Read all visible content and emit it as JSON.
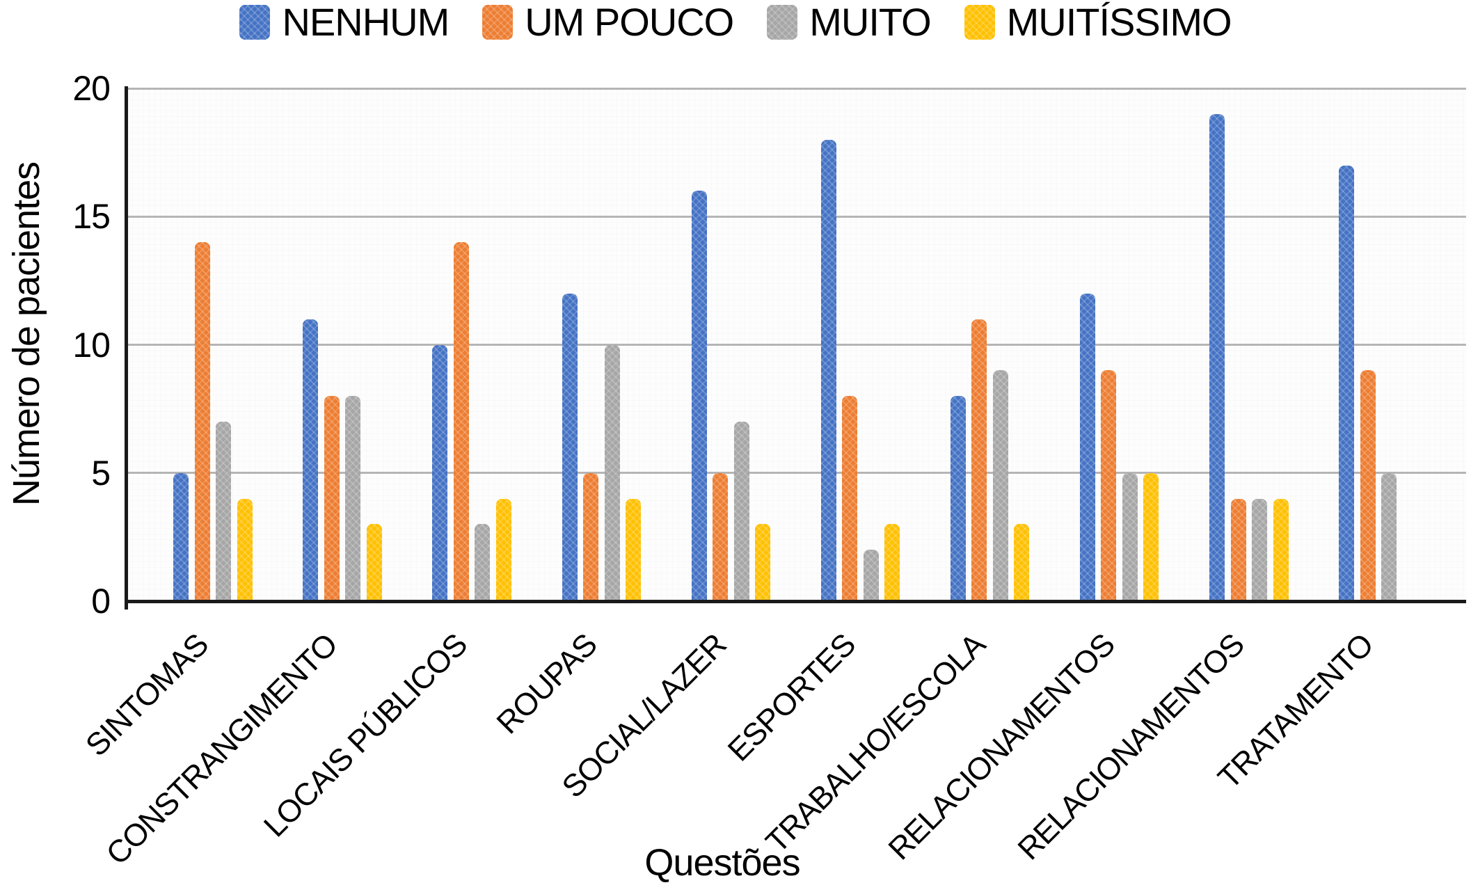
{
  "chart_data": {
    "type": "bar",
    "title": "",
    "xlabel": "Questões",
    "ylabel": "Número de pacientes",
    "ylim": [
      0,
      20
    ],
    "yticks": [
      0,
      5,
      10,
      15,
      20
    ],
    "grid": true,
    "legend_position": "top",
    "categories": [
      "SINTOMAS",
      "CONSTRANGIMENTO",
      "LOCAIS PÚBLICOS",
      "ROUPAS",
      "SOCIAL/LAZER",
      "ESPORTES",
      "TRABALHO/ESCOLA",
      "RELACIONAMENTOS",
      "RELACIONAMENTOS",
      "TRATAMENTO"
    ],
    "series": [
      {
        "name": "NENHUM",
        "color": "#4472C4",
        "values": [
          5,
          11,
          10,
          12,
          16,
          18,
          8,
          12,
          19,
          17
        ]
      },
      {
        "name": "UM POUCO",
        "color": "#ED7D31",
        "values": [
          14,
          8,
          14,
          5,
          5,
          8,
          11,
          9,
          4,
          9
        ]
      },
      {
        "name": "MUITO",
        "color": "#A6A6A6",
        "values": [
          7,
          8,
          3,
          10,
          7,
          2,
          9,
          5,
          4,
          5
        ]
      },
      {
        "name": "MUITÍSSIMO",
        "color": "#FFC000",
        "values": [
          4,
          3,
          4,
          4,
          3,
          3,
          3,
          5,
          4,
          null
        ]
      }
    ],
    "colors": {
      "axis": "#1a1a1a",
      "gridline": "#b5b5b5",
      "text": "#000000"
    }
  }
}
